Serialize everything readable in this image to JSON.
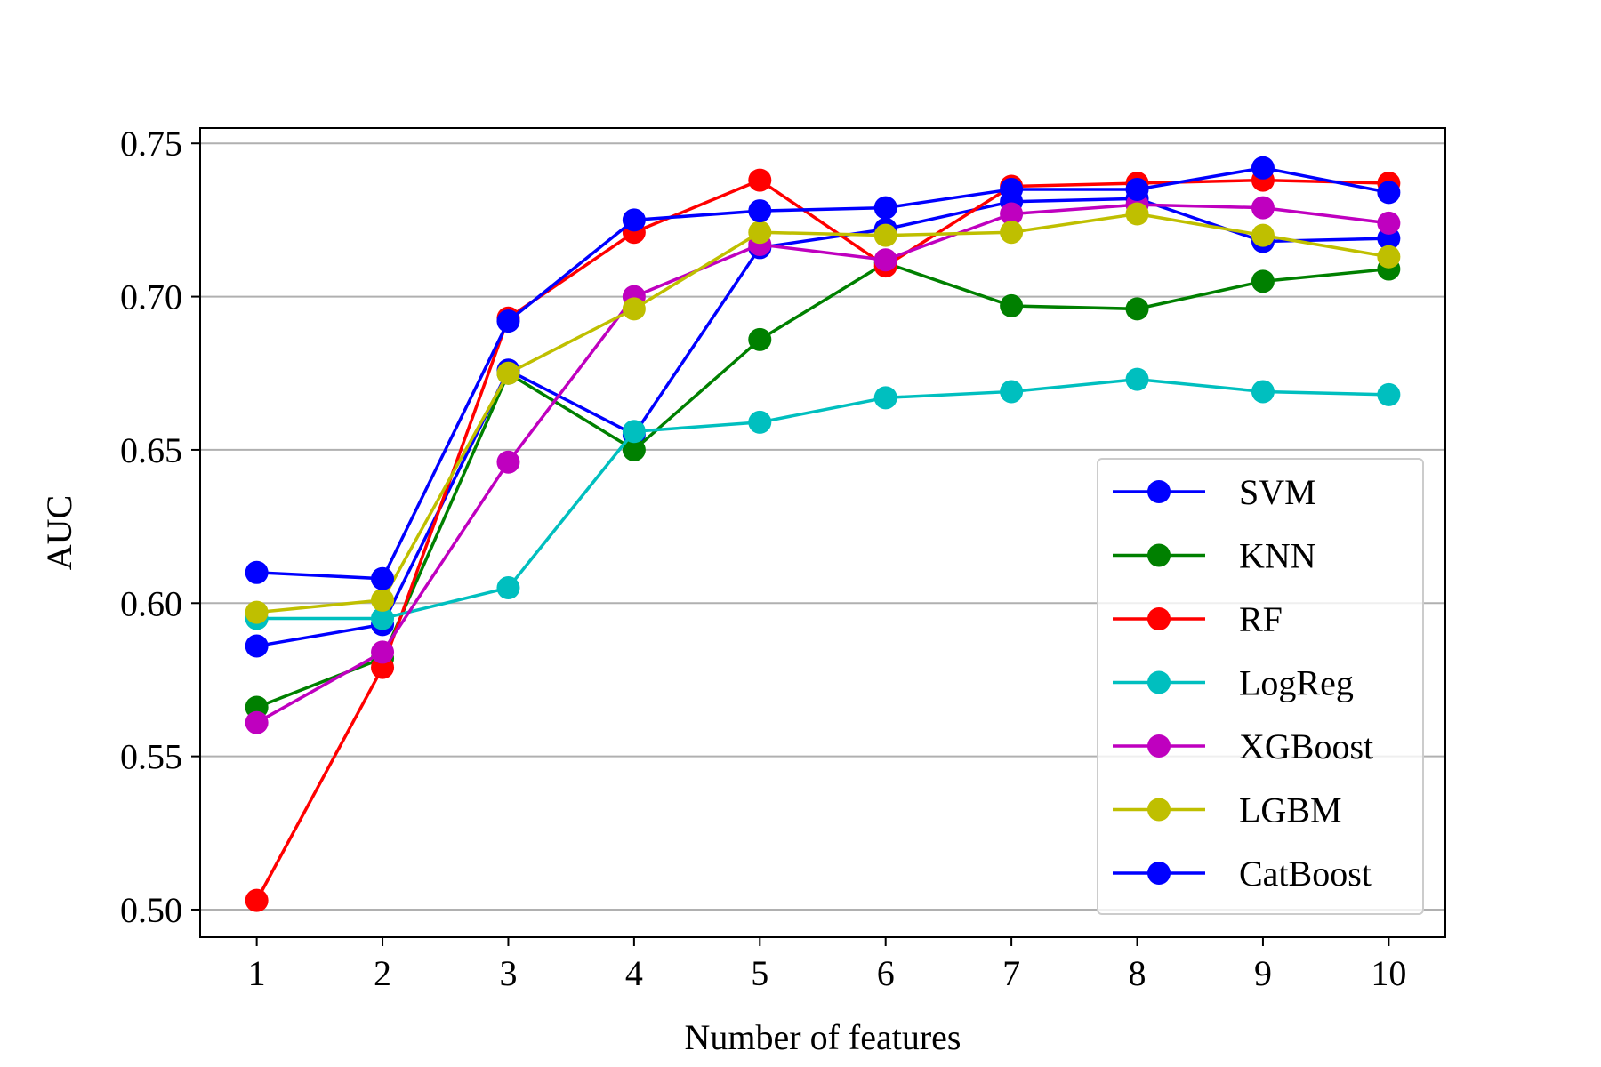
{
  "chart_data": {
    "type": "line",
    "title": "",
    "xlabel": "Number of features",
    "ylabel": "AUC",
    "x": [
      1,
      2,
      3,
      4,
      5,
      6,
      7,
      8,
      9,
      10
    ],
    "xticks": [
      "1",
      "2",
      "3",
      "4",
      "5",
      "6",
      "7",
      "8",
      "9",
      "10"
    ],
    "yticks": [
      "0.50",
      "0.55",
      "0.60",
      "0.65",
      "0.70",
      "0.75"
    ],
    "ylim": [
      0.491,
      0.755
    ],
    "grid": "horizontal",
    "legend_position": "lower right",
    "series": [
      {
        "name": "SVM",
        "color": "#0000ff",
        "values": [
          0.586,
          0.593,
          0.676,
          0.655,
          0.716,
          0.722,
          0.731,
          0.732,
          0.718,
          0.719
        ]
      },
      {
        "name": "KNN",
        "color": "#008000",
        "values": [
          0.566,
          0.582,
          0.675,
          0.65,
          0.686,
          0.711,
          0.697,
          0.696,
          0.705,
          0.709
        ]
      },
      {
        "name": "RF",
        "color": "#ff0000",
        "values": [
          0.503,
          0.579,
          0.693,
          0.721,
          0.738,
          0.71,
          0.736,
          0.737,
          0.738,
          0.737
        ]
      },
      {
        "name": "LogReg",
        "color": "#00bfbf",
        "values": [
          0.595,
          0.595,
          0.605,
          0.656,
          0.659,
          0.667,
          0.669,
          0.673,
          0.669,
          0.668
        ]
      },
      {
        "name": "XGBoost",
        "color": "#bf00bf",
        "values": [
          0.561,
          0.584,
          0.646,
          0.7,
          0.717,
          0.712,
          0.727,
          0.73,
          0.729,
          0.724
        ]
      },
      {
        "name": "LGBM",
        "color": "#bfbf00",
        "values": [
          0.597,
          0.601,
          0.675,
          0.696,
          0.721,
          0.72,
          0.721,
          0.727,
          0.72,
          0.713
        ]
      },
      {
        "name": "CatBoost",
        "color": "#0000ff",
        "values": [
          0.61,
          0.608,
          0.692,
          0.725,
          0.728,
          0.729,
          0.735,
          0.735,
          0.742,
          0.734
        ]
      }
    ]
  }
}
